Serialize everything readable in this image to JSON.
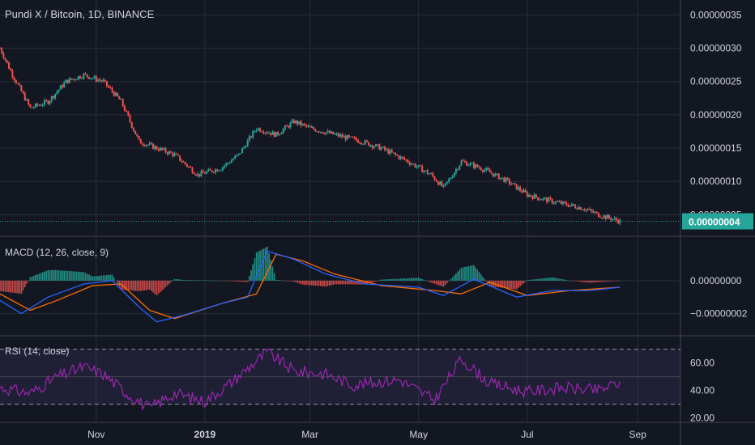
{
  "header": {
    "title": "Pundi X / Bitcoin, 1D, BINANCE"
  },
  "colors": {
    "background": "#131722",
    "grid": "#2a2e39",
    "up": "#26a69a",
    "down": "#ef5350",
    "macd_line": "#2962ff",
    "signal_line": "#ff6d00",
    "rsi_line": "#9c27b0",
    "rsi_band": "#7e57c2",
    "price_tag": "#26a69a"
  },
  "time_axis": {
    "labels": [
      "Nov",
      "2019",
      "Mar",
      "May",
      "Jul",
      "Sep"
    ]
  },
  "chart_data": [
    {
      "type": "candlestick",
      "title": "Pundi X / Bitcoin, 1D, BINANCE",
      "y_ticks": [
        "0.00000035",
        "0.00000030",
        "0.00000025",
        "0.00000020",
        "0.00000015",
        "0.00000010",
        "0.00000005"
      ],
      "ylim": [
        2e-08,
        3.7e-07
      ],
      "last_price_label": "0.00000004",
      "last_price": 4e-08,
      "x_range": [
        "2018-09-08",
        "2019-09-25"
      ],
      "close_path": [
        {
          "x": "2018-09-08",
          "y": 3e-07
        },
        {
          "x": "2018-09-15",
          "y": 2.6e-07
        },
        {
          "x": "2018-09-25",
          "y": 2.1e-07
        },
        {
          "x": "2018-10-05",
          "y": 2.2e-07
        },
        {
          "x": "2018-10-15",
          "y": 2.5e-07
        },
        {
          "x": "2018-10-25",
          "y": 2.6e-07
        },
        {
          "x": "2018-11-05",
          "y": 2.5e-07
        },
        {
          "x": "2018-11-15",
          "y": 2.2e-07
        },
        {
          "x": "2018-11-25",
          "y": 1.6e-07
        },
        {
          "x": "2018-12-05",
          "y": 1.5e-07
        },
        {
          "x": "2018-12-15",
          "y": 1.4e-07
        },
        {
          "x": "2018-12-28",
          "y": 1.1e-07
        },
        {
          "x": "2019-01-10",
          "y": 1.2e-07
        },
        {
          "x": "2019-01-20",
          "y": 1.4e-07
        },
        {
          "x": "2019-01-30",
          "y": 1.8e-07
        },
        {
          "x": "2019-02-10",
          "y": 1.7e-07
        },
        {
          "x": "2019-02-20",
          "y": 1.9e-07
        },
        {
          "x": "2019-03-01",
          "y": 1.8e-07
        },
        {
          "x": "2019-03-15",
          "y": 1.7e-07
        },
        {
          "x": "2019-03-30",
          "y": 1.6e-07
        },
        {
          "x": "2019-04-10",
          "y": 1.5e-07
        },
        {
          "x": "2019-04-25",
          "y": 1.3e-07
        },
        {
          "x": "2019-05-08",
          "y": 1.1e-07
        },
        {
          "x": "2019-05-15",
          "y": 9e-08
        },
        {
          "x": "2019-05-25",
          "y": 1.3e-07
        },
        {
          "x": "2019-06-05",
          "y": 1.2e-07
        },
        {
          "x": "2019-06-20",
          "y": 1e-07
        },
        {
          "x": "2019-07-01",
          "y": 8e-08
        },
        {
          "x": "2019-07-15",
          "y": 7e-08
        },
        {
          "x": "2019-08-01",
          "y": 6e-08
        },
        {
          "x": "2019-08-10",
          "y": 5e-08
        },
        {
          "x": "2019-08-22",
          "y": 4e-08
        }
      ]
    },
    {
      "type": "line",
      "title": "MACD (12, 26, close, 9)",
      "y_ticks": [
        "0.00000000",
        "−0.00000002"
      ],
      "ylim": [
        -3.2e-08,
        2.6e-08
      ],
      "series": [
        {
          "points": [
            {
              "x": "2018-09-08",
              "y": -1.2e-08
            },
            {
              "x": "2018-09-20",
              "y": -2e-08
            },
            {
              "x": "2018-10-05",
              "y": -1e-08
            },
            {
              "x": "2018-10-25",
              "y": -2e-09
            },
            {
              "x": "2018-11-10",
              "y": 0.0
            },
            {
              "x": "2018-11-25",
              "y": -1.6e-08
            },
            {
              "x": "2018-12-05",
              "y": -2.5e-08
            },
            {
              "x": "2018-12-20",
              "y": -2.1e-08
            },
            {
              "x": "2019-01-10",
              "y": -1.4e-08
            },
            {
              "x": "2019-01-25",
              "y": -1e-08
            },
            {
              "x": "2019-02-05",
              "y": 1.8e-08
            },
            {
              "x": "2019-02-20",
              "y": 1.3e-08
            },
            {
              "x": "2019-03-10",
              "y": 4e-09
            },
            {
              "x": "2019-04-01",
              "y": -2e-09
            },
            {
              "x": "2019-05-01",
              "y": -4e-09
            },
            {
              "x": "2019-05-15",
              "y": -9e-09
            },
            {
              "x": "2019-06-01",
              "y": 1e-09
            },
            {
              "x": "2019-06-25",
              "y": -1e-08
            },
            {
              "x": "2019-07-15",
              "y": -6e-09
            },
            {
              "x": "2019-08-05",
              "y": -6e-09
            },
            {
              "x": "2019-08-22",
              "y": -4e-09
            }
          ]
        },
        {
          "points": [
            {
              "x": "2018-09-08",
              "y": -8e-09
            },
            {
              "x": "2018-09-25",
              "y": -1.8e-08
            },
            {
              "x": "2018-10-10",
              "y": -1.2e-08
            },
            {
              "x": "2018-10-30",
              "y": -3e-09
            },
            {
              "x": "2018-11-15",
              "y": -2e-09
            },
            {
              "x": "2018-12-01",
              "y": -1.8e-08
            },
            {
              "x": "2018-12-15",
              "y": -2.3e-08
            },
            {
              "x": "2019-01-10",
              "y": -1.4e-08
            },
            {
              "x": "2019-01-30",
              "y": -8e-09
            },
            {
              "x": "2019-02-10",
              "y": 1.6e-08
            },
            {
              "x": "2019-02-25",
              "y": 1.2e-08
            },
            {
              "x": "2019-03-15",
              "y": 4e-09
            },
            {
              "x": "2019-04-10",
              "y": -3e-09
            },
            {
              "x": "2019-05-10",
              "y": -6e-09
            },
            {
              "x": "2019-05-25",
              "y": -8e-09
            },
            {
              "x": "2019-06-10",
              "y": -1e-09
            },
            {
              "x": "2019-07-01",
              "y": -9e-09
            },
            {
              "x": "2019-07-25",
              "y": -6e-09
            },
            {
              "x": "2019-08-22",
              "y": -4e-09
            }
          ]
        }
      ],
      "histogram": "bars around the zero line"
    },
    {
      "type": "line",
      "title": "RSI (14, close)",
      "y_ticks": [
        "60.00",
        "40.00",
        "20.00"
      ],
      "ylim": [
        18,
        78
      ],
      "band": [
        30,
        70
      ],
      "series": [
        {
          "points": [
            {
              "x": "2018-09-08",
              "y": 42
            },
            {
              "x": "2018-09-25",
              "y": 38
            },
            {
              "x": "2018-10-10",
              "y": 50
            },
            {
              "x": "2018-10-25",
              "y": 57
            },
            {
              "x": "2018-11-05",
              "y": 52
            },
            {
              "x": "2018-11-20",
              "y": 36
            },
            {
              "x": "2018-12-01",
              "y": 27
            },
            {
              "x": "2018-12-15",
              "y": 38
            },
            {
              "x": "2019-01-01",
              "y": 32
            },
            {
              "x": "2019-01-15",
              "y": 45
            },
            {
              "x": "2019-02-05",
              "y": 68
            },
            {
              "x": "2019-02-20",
              "y": 54
            },
            {
              "x": "2019-03-10",
              "y": 52
            },
            {
              "x": "2019-03-25",
              "y": 44
            },
            {
              "x": "2019-04-20",
              "y": 48
            },
            {
              "x": "2019-05-10",
              "y": 33
            },
            {
              "x": "2019-05-25",
              "y": 63
            },
            {
              "x": "2019-06-10",
              "y": 45
            },
            {
              "x": "2019-07-01",
              "y": 39
            },
            {
              "x": "2019-07-20",
              "y": 42
            },
            {
              "x": "2019-08-10",
              "y": 40
            },
            {
              "x": "2019-08-22",
              "y": 46
            }
          ]
        }
      ]
    }
  ]
}
